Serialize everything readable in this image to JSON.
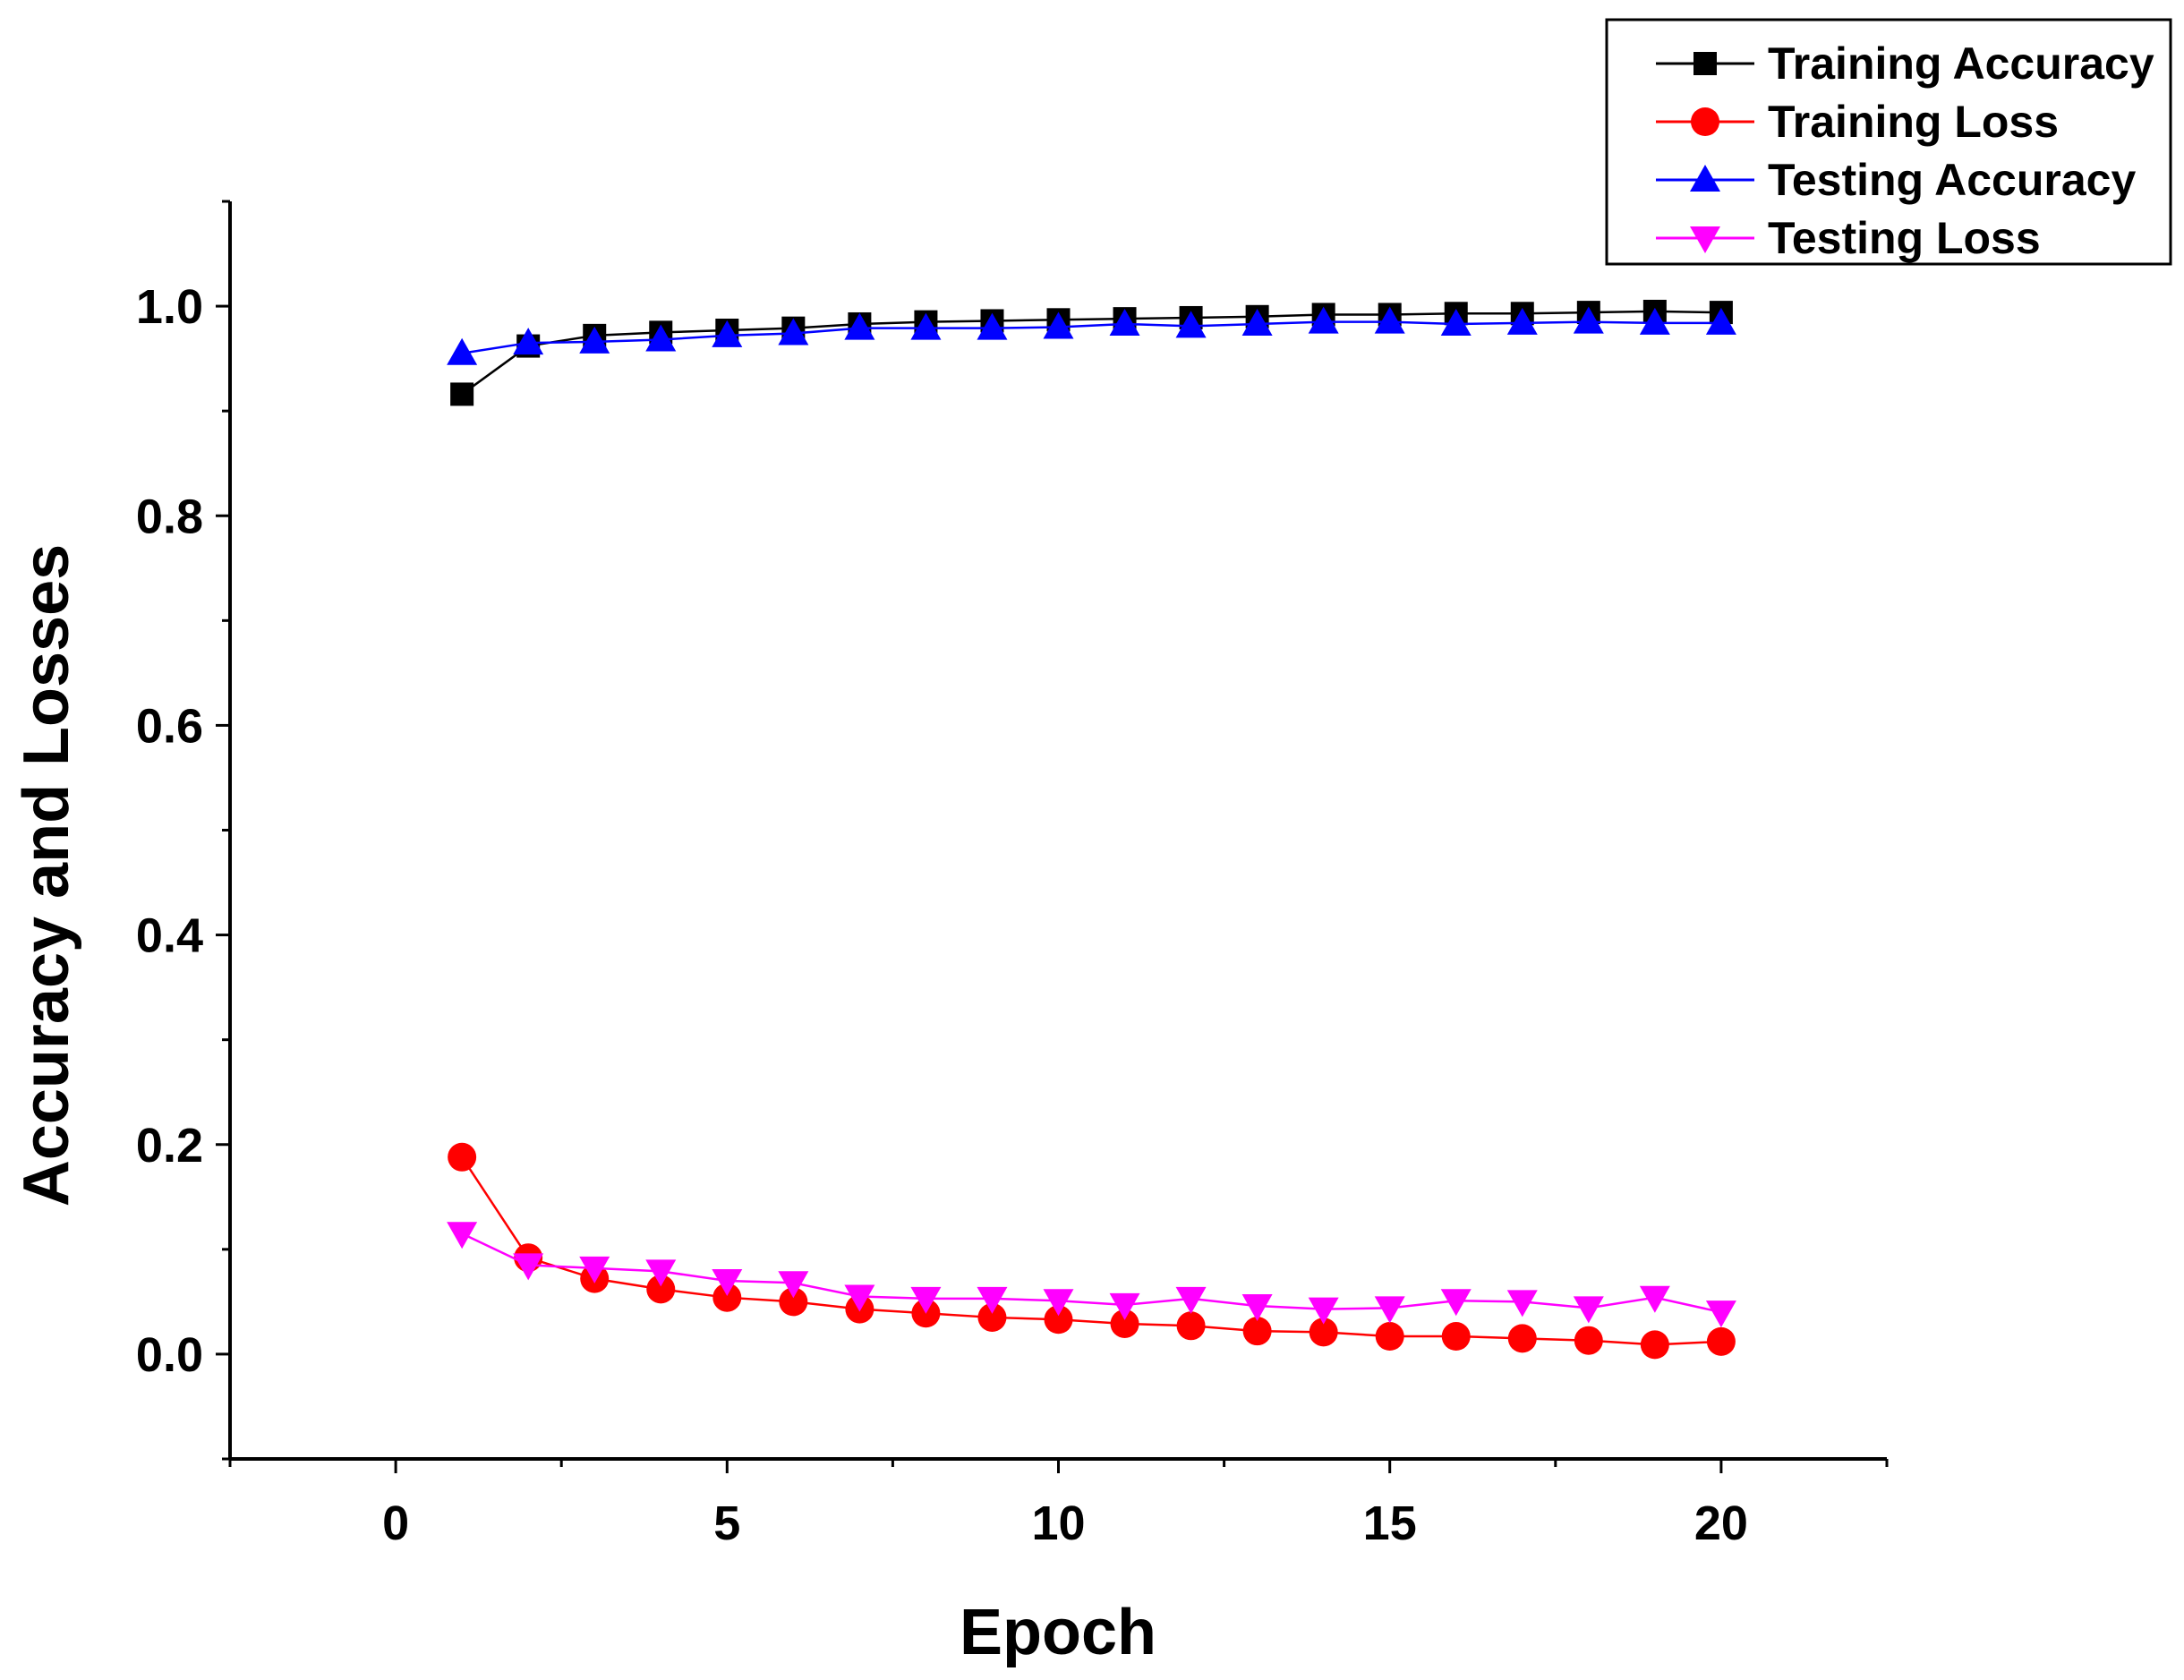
{
  "chart_data": {
    "type": "line",
    "title": "",
    "xlabel": "Epoch",
    "ylabel": "Accuracy and Losses",
    "xlim": [
      -2.5,
      22.5
    ],
    "ylim": [
      -0.1,
      1.1
    ],
    "xticks": [
      0,
      5,
      10,
      15,
      20
    ],
    "xtick_labels": [
      "0",
      "5",
      "10",
      "15",
      "20"
    ],
    "yticks": [
      0.0,
      0.2,
      0.4,
      0.6,
      0.8,
      1.0
    ],
    "ytick_labels": [
      "0.0",
      "0.2",
      "0.4",
      "0.6",
      "0.8",
      "1.0"
    ],
    "grid": false,
    "legend_position": "top-right",
    "x": [
      1,
      2,
      3,
      4,
      5,
      6,
      7,
      8,
      9,
      10,
      11,
      12,
      13,
      14,
      15,
      16,
      17,
      18,
      19,
      20
    ],
    "series": [
      {
        "name": "Training Accuracy",
        "color": "#000000",
        "marker": "square",
        "values": [
          0.916,
          0.962,
          0.972,
          0.975,
          0.977,
          0.979,
          0.983,
          0.985,
          0.986,
          0.987,
          0.988,
          0.989,
          0.99,
          0.992,
          0.992,
          0.993,
          0.993,
          0.994,
          0.995,
          0.994
        ]
      },
      {
        "name": "Training Loss",
        "color": "#ff0000",
        "marker": "circle",
        "values": [
          0.188,
          0.092,
          0.072,
          0.062,
          0.054,
          0.05,
          0.043,
          0.039,
          0.035,
          0.033,
          0.029,
          0.027,
          0.022,
          0.021,
          0.017,
          0.017,
          0.015,
          0.013,
          0.009,
          0.012
        ]
      },
      {
        "name": "Testing Accuracy",
        "color": "#0000ff",
        "marker": "triangle-up",
        "values": [
          0.955,
          0.965,
          0.966,
          0.968,
          0.972,
          0.974,
          0.979,
          0.979,
          0.979,
          0.98,
          0.983,
          0.981,
          0.983,
          0.985,
          0.985,
          0.983,
          0.984,
          0.985,
          0.984,
          0.984
        ]
      },
      {
        "name": "Testing Loss",
        "color": "#ff00ff",
        "marker": "triangle-down",
        "values": [
          0.115,
          0.085,
          0.082,
          0.079,
          0.07,
          0.068,
          0.055,
          0.053,
          0.053,
          0.051,
          0.047,
          0.053,
          0.046,
          0.043,
          0.044,
          0.051,
          0.05,
          0.044,
          0.054,
          0.04
        ]
      }
    ]
  }
}
